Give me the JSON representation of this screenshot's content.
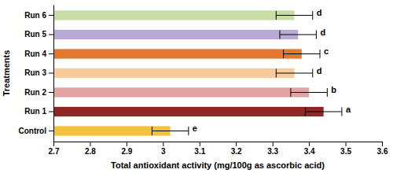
{
  "chart_data": {
    "type": "bar",
    "orientation": "horizontal",
    "x_label": "Total antioxidant activity (mg/100g as ascorbic acid)",
    "y_label": "Treatments",
    "categories": [
      "Run 6",
      "Run 5",
      "Run 4",
      "Run 3",
      "Run 2",
      "Run 1",
      "Control"
    ],
    "values": [
      3.36,
      3.37,
      3.38,
      3.36,
      3.4,
      3.44,
      3.02
    ],
    "errors": [
      0.05,
      0.05,
      0.05,
      0.05,
      0.05,
      0.05,
      0.05
    ],
    "annotations": [
      "d",
      "d",
      "c",
      "d",
      "b",
      "a",
      "e"
    ],
    "colors": [
      "#c6dea6",
      "#b8a9d6",
      "#e2782f",
      "#f7cc9a",
      "#e2a3a4",
      "#8e2626",
      "#f3c23c"
    ],
    "xlim": [
      2.7,
      3.6
    ],
    "xticks": [
      2.7,
      2.8,
      2.9,
      3,
      3.1,
      3.2,
      3.3,
      3.4,
      3.5,
      3.6
    ],
    "grid": false
  }
}
